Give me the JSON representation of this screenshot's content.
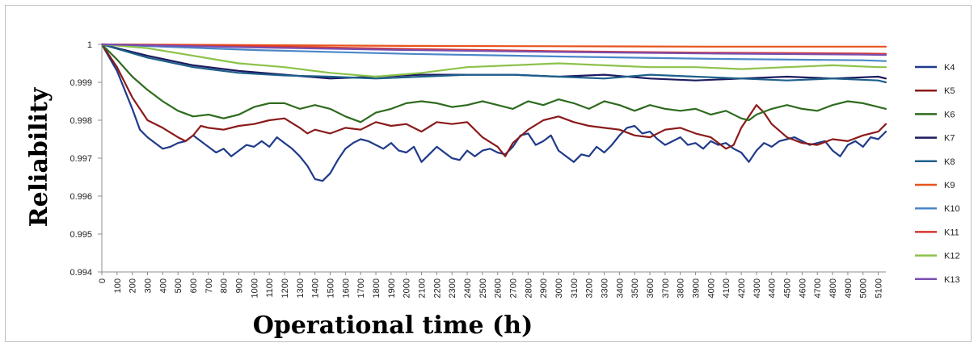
{
  "chart_data": {
    "type": "line",
    "title": "",
    "xlabel": "Operational time (h)",
    "ylabel": "Reliability",
    "xlim": [
      0,
      5150
    ],
    "ylim": [
      0.994,
      1
    ],
    "xticks": [
      0,
      100,
      200,
      300,
      400,
      500,
      600,
      700,
      800,
      900,
      1000,
      1100,
      1200,
      1300,
      1400,
      1500,
      1600,
      1700,
      1800,
      1900,
      2000,
      2100,
      2200,
      2300,
      2400,
      2500,
      2600,
      2700,
      2800,
      2900,
      3000,
      3100,
      3200,
      3300,
      3400,
      3500,
      3600,
      3700,
      3800,
      3900,
      4000,
      4100,
      4200,
      4300,
      4400,
      4500,
      4600,
      4700,
      4800,
      4900,
      5000,
      5100
    ],
    "yticks": [
      "0.994",
      "0.995",
      "0.996",
      "0.997",
      "0.998",
      "0.999",
      "1"
    ],
    "grid": false,
    "legend_position": "right",
    "series": [
      {
        "name": "K4",
        "color": "#1f3a8a",
        "x": [
          0,
          100,
          200,
          250,
          300,
          350,
          400,
          450,
          500,
          550,
          600,
          650,
          700,
          750,
          800,
          850,
          900,
          950,
          1000,
          1050,
          1100,
          1150,
          1200,
          1250,
          1300,
          1350,
          1400,
          1450,
          1500,
          1550,
          1600,
          1650,
          1700,
          1750,
          1800,
          1850,
          1900,
          1950,
          2000,
          2050,
          2100,
          2150,
          2200,
          2250,
          2300,
          2350,
          2400,
          2450,
          2500,
          2550,
          2600,
          2650,
          2700,
          2750,
          2800,
          2850,
          2900,
          2950,
          3000,
          3050,
          3100,
          3150,
          3200,
          3250,
          3300,
          3350,
          3400,
          3450,
          3500,
          3550,
          3600,
          3650,
          3700,
          3750,
          3800,
          3850,
          3900,
          3950,
          4000,
          4050,
          4100,
          4150,
          4200,
          4250,
          4300,
          4350,
          4400,
          4450,
          4500,
          4550,
          4600,
          4650,
          4700,
          4750,
          4800,
          4850,
          4900,
          4950,
          5000,
          5050,
          5100,
          5150
        ],
        "y": [
          1,
          0.9993,
          0.9983,
          0.99775,
          0.99755,
          0.9974,
          0.99725,
          0.9973,
          0.9974,
          0.99745,
          0.9976,
          0.99745,
          0.9973,
          0.99715,
          0.99725,
          0.99705,
          0.9972,
          0.99735,
          0.9973,
          0.99745,
          0.9973,
          0.99755,
          0.9974,
          0.99725,
          0.99705,
          0.9968,
          0.99645,
          0.9964,
          0.9966,
          0.99695,
          0.99725,
          0.9974,
          0.9975,
          0.99745,
          0.99735,
          0.99725,
          0.9974,
          0.9972,
          0.99715,
          0.9973,
          0.9969,
          0.9971,
          0.9973,
          0.99715,
          0.997,
          0.99695,
          0.9972,
          0.99705,
          0.9972,
          0.99725,
          0.99715,
          0.9971,
          0.9973,
          0.9976,
          0.99765,
          0.99735,
          0.99745,
          0.9976,
          0.9972,
          0.99705,
          0.9969,
          0.9971,
          0.99705,
          0.9973,
          0.99715,
          0.99735,
          0.9976,
          0.9978,
          0.99785,
          0.99765,
          0.9977,
          0.9975,
          0.99735,
          0.99745,
          0.99755,
          0.99735,
          0.9974,
          0.99725,
          0.99745,
          0.99735,
          0.9974,
          0.99725,
          0.99715,
          0.9969,
          0.9972,
          0.9974,
          0.9973,
          0.99745,
          0.9975,
          0.99755,
          0.99745,
          0.99735,
          0.9974,
          0.99745,
          0.9972,
          0.99705,
          0.99735,
          0.99745,
          0.9973,
          0.99755,
          0.9975,
          0.9977
        ]
      },
      {
        "name": "K5",
        "color": "#8b1a1a",
        "x": [
          0,
          100,
          200,
          300,
          400,
          500,
          550,
          600,
          650,
          700,
          800,
          900,
          1000,
          1100,
          1200,
          1300,
          1350,
          1400,
          1500,
          1600,
          1700,
          1800,
          1900,
          2000,
          2100,
          2200,
          2300,
          2400,
          2500,
          2600,
          2650,
          2700,
          2800,
          2900,
          3000,
          3100,
          3200,
          3300,
          3400,
          3500,
          3600,
          3700,
          3800,
          3900,
          4000,
          4100,
          4150,
          4200,
          4300,
          4350,
          4400,
          4500,
          4600,
          4700,
          4800,
          4900,
          5000,
          5100,
          5150
        ],
        "y": [
          1,
          0.9994,
          0.9986,
          0.998,
          0.9978,
          0.99755,
          0.99745,
          0.9976,
          0.99785,
          0.9978,
          0.99775,
          0.99785,
          0.9979,
          0.998,
          0.99805,
          0.9978,
          0.99765,
          0.99775,
          0.99765,
          0.9978,
          0.99775,
          0.99795,
          0.99785,
          0.9979,
          0.9977,
          0.99795,
          0.9979,
          0.99795,
          0.99755,
          0.9973,
          0.99705,
          0.9974,
          0.99775,
          0.998,
          0.9981,
          0.99795,
          0.99785,
          0.9978,
          0.99775,
          0.9976,
          0.99755,
          0.99775,
          0.9978,
          0.99765,
          0.99755,
          0.99725,
          0.99735,
          0.9978,
          0.9984,
          0.9982,
          0.9979,
          0.99755,
          0.9974,
          0.99735,
          0.9975,
          0.99745,
          0.9976,
          0.9977,
          0.9979
        ]
      },
      {
        "name": "K6",
        "color": "#2e6b1e",
        "x": [
          0,
          100,
          200,
          300,
          400,
          500,
          600,
          700,
          800,
          900,
          1000,
          1100,
          1200,
          1300,
          1400,
          1500,
          1600,
          1700,
          1800,
          1900,
          2000,
          2100,
          2200,
          2300,
          2400,
          2500,
          2600,
          2700,
          2800,
          2900,
          3000,
          3100,
          3200,
          3300,
          3400,
          3500,
          3600,
          3700,
          3800,
          3900,
          4000,
          4100,
          4200,
          4250,
          4300,
          4400,
          4500,
          4600,
          4700,
          4800,
          4900,
          5000,
          5100,
          5150
        ],
        "y": [
          1,
          0.9996,
          0.99915,
          0.9988,
          0.9985,
          0.99825,
          0.9981,
          0.99815,
          0.99805,
          0.99815,
          0.99835,
          0.99845,
          0.99845,
          0.9983,
          0.9984,
          0.9983,
          0.9981,
          0.99795,
          0.9982,
          0.9983,
          0.99845,
          0.9985,
          0.99845,
          0.99835,
          0.9984,
          0.9985,
          0.9984,
          0.9983,
          0.9985,
          0.9984,
          0.99855,
          0.99845,
          0.9983,
          0.9985,
          0.9984,
          0.99825,
          0.9984,
          0.9983,
          0.99825,
          0.9983,
          0.99815,
          0.99825,
          0.99805,
          0.998,
          0.99815,
          0.9983,
          0.9984,
          0.9983,
          0.99825,
          0.9984,
          0.9985,
          0.99845,
          0.99835,
          0.9983
        ]
      },
      {
        "name": "K7",
        "color": "#1c1a5e",
        "x": [
          0,
          300,
          600,
          900,
          1200,
          1500,
          1800,
          2100,
          2400,
          2700,
          3000,
          3300,
          3600,
          3900,
          4200,
          4500,
          4800,
          5100,
          5150
        ],
        "y": [
          1,
          0.9997,
          0.99945,
          0.9993,
          0.9992,
          0.9991,
          0.99915,
          0.9992,
          0.9992,
          0.9992,
          0.99915,
          0.9992,
          0.9991,
          0.99905,
          0.9991,
          0.99915,
          0.9991,
          0.99915,
          0.9991
        ]
      },
      {
        "name": "K8",
        "color": "#1d5f8a",
        "x": [
          0,
          300,
          600,
          900,
          1200,
          1500,
          1800,
          2100,
          2400,
          2700,
          3000,
          3300,
          3600,
          3900,
          4200,
          4500,
          4800,
          5100,
          5150
        ],
        "y": [
          1,
          0.99965,
          0.9994,
          0.99925,
          0.99918,
          0.99915,
          0.9991,
          0.99915,
          0.9992,
          0.9992,
          0.99915,
          0.9991,
          0.9992,
          0.99915,
          0.9991,
          0.99905,
          0.9991,
          0.99905,
          0.999
        ]
      },
      {
        "name": "K9",
        "color": "#e8531c",
        "x": [
          0,
          1000,
          2000,
          3000,
          4000,
          5000,
          5150
        ],
        "y": [
          1,
          0.99998,
          0.99996,
          0.99995,
          0.99994,
          0.99994,
          0.99994
        ]
      },
      {
        "name": "K10",
        "color": "#4a86c8",
        "x": [
          0,
          1000,
          2000,
          3000,
          4000,
          5000,
          5150
        ],
        "y": [
          1,
          0.99985,
          0.99975,
          0.99968,
          0.99962,
          0.99958,
          0.99956
        ]
      },
      {
        "name": "K11",
        "color": "#d6362f",
        "x": [
          0,
          1000,
          2000,
          3000,
          4000,
          5000,
          5150
        ],
        "y": [
          1,
          0.99995,
          0.99988,
          0.99982,
          0.99978,
          0.99976,
          0.99975
        ]
      },
      {
        "name": "K12",
        "color": "#8cc24a",
        "x": [
          0,
          300,
          600,
          900,
          1200,
          1500,
          1800,
          2100,
          2400,
          2700,
          3000,
          3300,
          3600,
          3900,
          4200,
          4500,
          4800,
          5100,
          5150
        ],
        "y": [
          1,
          0.9999,
          0.9997,
          0.9995,
          0.9994,
          0.99925,
          0.99915,
          0.99925,
          0.9994,
          0.99945,
          0.9995,
          0.99945,
          0.9994,
          0.9994,
          0.99935,
          0.9994,
          0.99945,
          0.9994,
          0.9994
        ]
      },
      {
        "name": "K13",
        "color": "#7a4fb0",
        "x": [
          0,
          1000,
          2000,
          3000,
          4000,
          5000,
          5150
        ],
        "y": [
          1,
          0.99992,
          0.99985,
          0.9998,
          0.99976,
          0.99973,
          0.99972
        ]
      }
    ]
  }
}
